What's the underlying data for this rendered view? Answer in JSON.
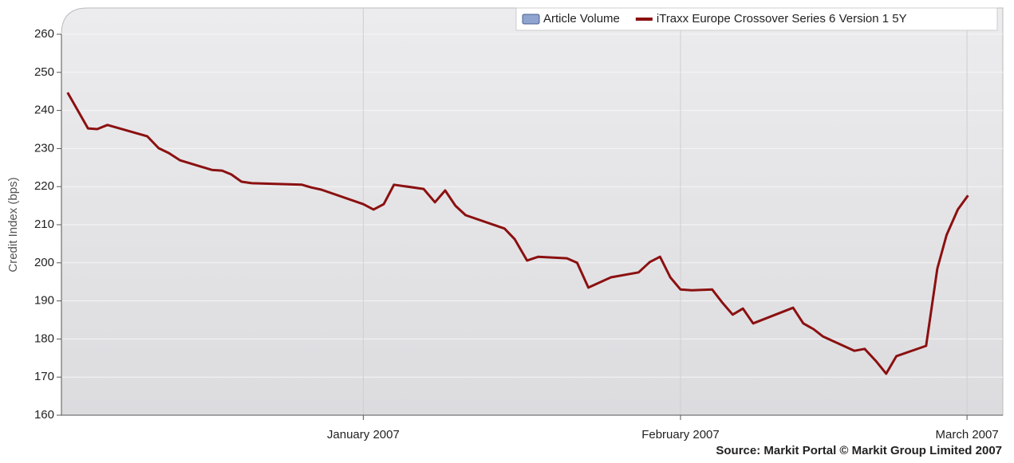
{
  "chart_data": {
    "type": "line",
    "y_label": "Credit Index (bps)",
    "source": "Source: Markit Portal  © Markit Group Limited 2007",
    "x": [
      -28.9,
      -26.9,
      -26.0,
      -25.0,
      -21.1,
      -20.0,
      -19.0,
      -17.9,
      -14.8,
      -13.8,
      -12.9,
      -11.9,
      -10.9,
      -6.0,
      -5.1,
      -4.1,
      0,
      1.0,
      2.0,
      3.0,
      5.9,
      7.0,
      8.0,
      9.0,
      10.0,
      13.8,
      14.8,
      16.0,
      17.1,
      19.9,
      20.9,
      22.0,
      24.2,
      26.9,
      28.0,
      29.0,
      30.0,
      31.0,
      32.1,
      34.1,
      35.1,
      36.1,
      37.1,
      38.1,
      42.0,
      43.0,
      44.0,
      44.9,
      48.0,
      49.0,
      50.1,
      51.1,
      52.1,
      55.0,
      56.1,
      57.0,
      58.1,
      59.1
    ],
    "series": [
      {
        "name": "Article Volume",
        "color": "#8fa5cf",
        "type": "bar"
      },
      {
        "name": "iTraxx Europe Crossover Series 6 Version 1 5Y",
        "color": "#8b1010",
        "values": [
          244.7,
          235.3,
          235.1,
          236.2,
          233.2,
          230.1,
          228.8,
          226.9,
          224.4,
          224.2,
          223.2,
          221.3,
          220.9,
          220.5,
          219.8,
          219.2,
          215.4,
          214.0,
          215.4,
          220.5,
          219.4,
          215.9,
          219.0,
          215.0,
          212.5,
          209.0,
          206.2,
          200.6,
          201.6,
          201.2,
          200.0,
          193.5,
          196.2,
          197.5,
          200.2,
          201.6,
          196.2,
          193.0,
          192.8,
          193.0,
          189.5,
          186.4,
          188.0,
          184.1,
          188.2,
          184.1,
          182.6,
          180.7,
          176.9,
          177.4,
          174.2,
          170.9,
          175.5,
          178.2,
          198.5,
          207.3,
          214.0,
          217.7
        ]
      }
    ],
    "xlim": [
      -29.5,
      62.5
    ],
    "xticks": [
      {
        "value": 0,
        "label": "January 2007"
      },
      {
        "value": 31,
        "label": "February 2007"
      },
      {
        "value": 59,
        "label": "March 2007"
      }
    ],
    "ylim": [
      160,
      260
    ],
    "yticks": [
      160,
      170,
      180,
      190,
      200,
      210,
      220,
      230,
      240,
      250,
      260
    ],
    "grid": true
  }
}
